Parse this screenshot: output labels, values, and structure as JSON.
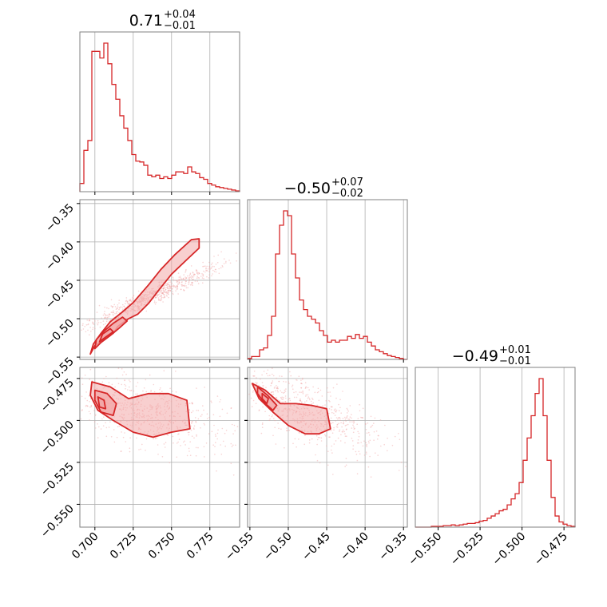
{
  "chart_data": {
    "type": "corner",
    "color": "#d62728",
    "fill_color": "#f2a7a8",
    "grid_color": "#b0b0b0",
    "frame_color": "#808080",
    "grid": true,
    "params": [
      {
        "title": {
          "main": "0.71",
          "sup": "+0.04",
          "sub": "−0.01"
        },
        "range": [
          0.6902,
          0.7944
        ],
        "ticks": [
          0.7,
          0.725,
          0.75,
          0.775
        ],
        "tick_labels": [
          "0.700",
          "0.725",
          "0.750",
          "0.775"
        ]
      },
      {
        "title": {
          "main": "−0.50",
          "sup": "+0.07",
          "sub": "−0.02"
        },
        "range": [
          -0.553,
          -0.345
        ],
        "ticks": [
          -0.55,
          -0.5,
          -0.45,
          -0.4,
          -0.35
        ],
        "tick_labels": [
          "−0.55",
          "−0.50",
          "−0.45",
          "−0.40",
          "−0.35"
        ]
      },
      {
        "title": {
          "main": "−0.49",
          "sup": "+0.01",
          "sub": "−0.01"
        },
        "range": [
          -0.5636,
          -0.4684
        ],
        "ticks": [
          -0.55,
          -0.525,
          -0.5,
          -0.475
        ],
        "tick_labels": [
          "−0.550",
          "−0.525",
          "−0.500",
          "−0.475"
        ]
      }
    ],
    "hist1": [
      0.1,
      0.5,
      0.62,
      1.7,
      1.7,
      1.62,
      1.8,
      1.55,
      1.3,
      1.12,
      0.92,
      0.77,
      0.62,
      0.45,
      0.37,
      0.36,
      0.32,
      0.2,
      0.18,
      0.2,
      0.16,
      0.18,
      0.16,
      0.2,
      0.24,
      0.24,
      0.22,
      0.3,
      0.24,
      0.22,
      0.17,
      0.15,
      0.1,
      0.08,
      0.06,
      0.05,
      0.04,
      0.03,
      0.02,
      0.01
    ],
    "hist2": [
      0.01,
      0.03,
      0.03,
      0.1,
      0.12,
      0.25,
      0.45,
      1.1,
      1.4,
      1.55,
      1.5,
      1.1,
      0.85,
      0.62,
      0.52,
      0.45,
      0.42,
      0.38,
      0.3,
      0.25,
      0.18,
      0.2,
      0.18,
      0.2,
      0.2,
      0.24,
      0.22,
      0.26,
      0.22,
      0.24,
      0.18,
      0.14,
      0.1,
      0.08,
      0.06,
      0.04,
      0.03,
      0.02,
      0.01,
      0.0
    ],
    "hist3": [
      0.0,
      0.0,
      0.0,
      0.0,
      0.01,
      0.01,
      0.01,
      0.02,
      0.02,
      0.03,
      0.02,
      0.03,
      0.04,
      0.05,
      0.05,
      0.06,
      0.08,
      0.09,
      0.12,
      0.15,
      0.18,
      0.22,
      0.24,
      0.3,
      0.38,
      0.45,
      0.6,
      0.9,
      1.2,
      1.5,
      1.8,
      2.0,
      1.5,
      0.9,
      0.4,
      0.15,
      0.07,
      0.04,
      0.02,
      0.01
    ],
    "scatter_12": {
      "ridge": [
        [
          0.698,
          -0.5415
        ],
        [
          0.705,
          -0.532
        ],
        [
          0.712,
          -0.517
        ],
        [
          0.72,
          -0.502
        ],
        [
          0.728,
          -0.49
        ],
        [
          0.736,
          -0.47
        ],
        [
          0.745,
          -0.451
        ],
        [
          0.755,
          -0.431
        ],
        [
          0.765,
          -0.415
        ],
        [
          0.775,
          -0.398
        ]
      ],
      "contour_1": [
        [
          0.697,
          -0.546
        ],
        [
          0.7,
          -0.535
        ],
        [
          0.705,
          -0.528
        ],
        [
          0.712,
          -0.519
        ],
        [
          0.715,
          -0.51
        ],
        [
          0.722,
          -0.5
        ],
        [
          0.728,
          -0.494
        ],
        [
          0.735,
          -0.48
        ],
        [
          0.742,
          -0.462
        ],
        [
          0.75,
          -0.442
        ],
        [
          0.76,
          -0.423
        ],
        [
          0.768,
          -0.408
        ],
        [
          0.768,
          -0.396
        ],
        [
          0.763,
          -0.397
        ],
        [
          0.752,
          -0.417
        ],
        [
          0.743,
          -0.436
        ],
        [
          0.735,
          -0.456
        ],
        [
          0.725,
          -0.479
        ],
        [
          0.718,
          -0.491
        ],
        [
          0.71,
          -0.504
        ],
        [
          0.704,
          -0.519
        ],
        [
          0.699,
          -0.533
        ],
        [
          0.697,
          -0.546
        ]
      ],
      "contour_2": [
        [
          0.7,
          -0.539
        ],
        [
          0.704,
          -0.531
        ],
        [
          0.71,
          -0.522
        ],
        [
          0.716,
          -0.512
        ],
        [
          0.721,
          -0.503
        ],
        [
          0.718,
          -0.498
        ],
        [
          0.712,
          -0.506
        ],
        [
          0.706,
          -0.516
        ],
        [
          0.701,
          -0.527
        ],
        [
          0.7,
          -0.539
        ]
      ],
      "contour_3": [
        [
          0.703,
          -0.53
        ],
        [
          0.707,
          -0.524
        ],
        [
          0.712,
          -0.517
        ],
        [
          0.71,
          -0.513
        ],
        [
          0.705,
          -0.52
        ],
        [
          0.703,
          -0.53
        ]
      ]
    },
    "scatter_13": {
      "contour_1": [
        [
          0.698,
          -0.477
        ],
        [
          0.71,
          -0.48
        ],
        [
          0.722,
          -0.487
        ],
        [
          0.735,
          -0.484
        ],
        [
          0.748,
          -0.484
        ],
        [
          0.76,
          -0.488
        ],
        [
          0.762,
          -0.505
        ],
        [
          0.75,
          -0.507
        ],
        [
          0.738,
          -0.51
        ],
        [
          0.725,
          -0.507
        ],
        [
          0.712,
          -0.5
        ],
        [
          0.702,
          -0.494
        ],
        [
          0.697,
          -0.485
        ],
        [
          0.698,
          -0.477
        ]
      ],
      "contour_2": [
        [
          0.7,
          -0.482
        ],
        [
          0.708,
          -0.484
        ],
        [
          0.714,
          -0.49
        ],
        [
          0.712,
          -0.497
        ],
        [
          0.704,
          -0.495
        ],
        [
          0.7,
          -0.488
        ],
        [
          0.7,
          -0.482
        ]
      ],
      "contour_3": [
        [
          0.702,
          -0.486
        ],
        [
          0.706,
          -0.488
        ],
        [
          0.707,
          -0.493
        ],
        [
          0.703,
          -0.492
        ],
        [
          0.702,
          -0.486
        ]
      ]
    },
    "scatter_23": {
      "contour_1": [
        [
          -0.547,
          -0.478
        ],
        [
          -0.53,
          -0.482
        ],
        [
          -0.51,
          -0.49
        ],
        [
          -0.49,
          -0.49
        ],
        [
          -0.47,
          -0.491
        ],
        [
          -0.45,
          -0.493
        ],
        [
          -0.445,
          -0.505
        ],
        [
          -0.46,
          -0.508
        ],
        [
          -0.478,
          -0.508
        ],
        [
          -0.5,
          -0.503
        ],
        [
          -0.52,
          -0.495
        ],
        [
          -0.538,
          -0.487
        ],
        [
          -0.547,
          -0.478
        ]
      ],
      "contour_2": [
        [
          -0.54,
          -0.48
        ],
        [
          -0.527,
          -0.485
        ],
        [
          -0.515,
          -0.491
        ],
        [
          -0.52,
          -0.494
        ],
        [
          -0.532,
          -0.489
        ],
        [
          -0.54,
          -0.484
        ],
        [
          -0.54,
          -0.48
        ]
      ],
      "contour_3": [
        [
          -0.534,
          -0.484
        ],
        [
          -0.526,
          -0.487
        ],
        [
          -0.528,
          -0.49
        ],
        [
          -0.534,
          -0.487
        ],
        [
          -0.534,
          -0.484
        ]
      ]
    }
  }
}
